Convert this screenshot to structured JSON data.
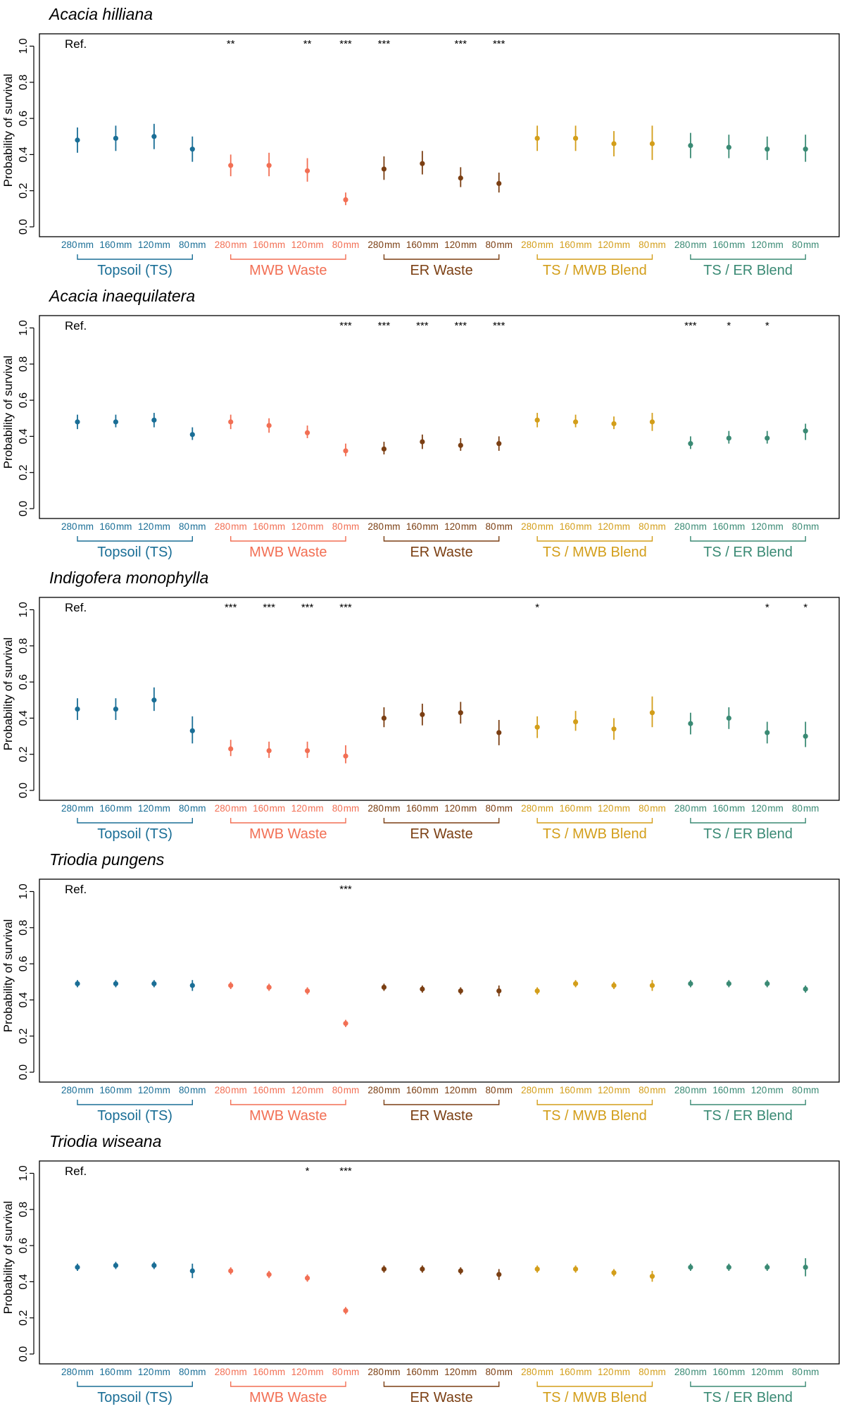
{
  "chart_data": {
    "type": "scatter",
    "ylabel": "Probability of survival",
    "ylim": [
      0,
      1.0
    ],
    "yticks": [
      "0.0",
      "0.2",
      "0.4",
      "0.6",
      "0.8",
      "1.0"
    ],
    "reference_label": "Ref.",
    "depth_labels": [
      "280",
      "160",
      "120",
      "80"
    ],
    "unit_label": "mm",
    "groups": [
      {
        "name": "Topsoil (TS)",
        "color": "#1a6e96"
      },
      {
        "name": "MWB Waste",
        "color": "#f26f54"
      },
      {
        "name": "ER Waste",
        "color": "#7b3f13"
      },
      {
        "name": "TS / MWB Blend",
        "color": "#d39e1a"
      },
      {
        "name": "TS / ER Blend",
        "color": "#3a8a74"
      }
    ],
    "panels": [
      {
        "title": "Acacia hilliana",
        "values": [
          0.48,
          0.49,
          0.5,
          0.43,
          0.34,
          0.34,
          0.31,
          0.15,
          0.32,
          0.35,
          0.27,
          0.24,
          0.49,
          0.49,
          0.46,
          0.46,
          0.45,
          0.44,
          0.43,
          0.43
        ],
        "lower": [
          0.41,
          0.42,
          0.43,
          0.36,
          0.28,
          0.28,
          0.25,
          0.12,
          0.26,
          0.29,
          0.22,
          0.19,
          0.42,
          0.42,
          0.39,
          0.37,
          0.38,
          0.38,
          0.37,
          0.36
        ],
        "upper": [
          0.55,
          0.56,
          0.57,
          0.5,
          0.4,
          0.41,
          0.38,
          0.19,
          0.39,
          0.42,
          0.33,
          0.3,
          0.56,
          0.56,
          0.53,
          0.56,
          0.52,
          0.51,
          0.5,
          0.51
        ],
        "significance": [
          "",
          "",
          "",
          "",
          "**",
          "",
          "**",
          "***",
          "***",
          "",
          "***",
          "***",
          "",
          "",
          "",
          "",
          "",
          "",
          "",
          ""
        ]
      },
      {
        "title": "Acacia inaequilatera",
        "values": [
          0.48,
          0.48,
          0.49,
          0.41,
          0.48,
          0.46,
          0.42,
          0.32,
          0.33,
          0.37,
          0.35,
          0.36,
          0.49,
          0.48,
          0.47,
          0.48,
          0.36,
          0.39,
          0.39,
          0.43
        ],
        "lower": [
          0.44,
          0.45,
          0.45,
          0.38,
          0.44,
          0.42,
          0.39,
          0.29,
          0.3,
          0.33,
          0.32,
          0.32,
          0.45,
          0.45,
          0.44,
          0.43,
          0.33,
          0.36,
          0.36,
          0.38
        ],
        "upper": [
          0.52,
          0.52,
          0.53,
          0.45,
          0.52,
          0.5,
          0.46,
          0.36,
          0.37,
          0.41,
          0.39,
          0.4,
          0.53,
          0.52,
          0.51,
          0.53,
          0.4,
          0.43,
          0.43,
          0.47
        ],
        "significance": [
          "",
          "",
          "",
          "",
          "",
          "",
          "",
          "***",
          "***",
          "***",
          "***",
          "***",
          "",
          "",
          "",
          "",
          "***",
          "*",
          "*",
          ""
        ]
      },
      {
        "title": "Indigofera monophylla",
        "values": [
          0.45,
          0.45,
          0.5,
          0.33,
          0.23,
          0.22,
          0.22,
          0.19,
          0.4,
          0.42,
          0.43,
          0.32,
          0.35,
          0.38,
          0.34,
          0.43,
          0.37,
          0.4,
          0.32,
          0.3
        ],
        "lower": [
          0.39,
          0.39,
          0.44,
          0.26,
          0.19,
          0.18,
          0.18,
          0.15,
          0.35,
          0.36,
          0.37,
          0.25,
          0.29,
          0.33,
          0.28,
          0.35,
          0.31,
          0.34,
          0.26,
          0.24
        ],
        "upper": [
          0.51,
          0.51,
          0.57,
          0.41,
          0.28,
          0.27,
          0.27,
          0.25,
          0.46,
          0.48,
          0.49,
          0.39,
          0.41,
          0.44,
          0.4,
          0.52,
          0.43,
          0.46,
          0.38,
          0.38
        ],
        "significance": [
          "",
          "",
          "",
          "",
          "***",
          "***",
          "***",
          "***",
          "",
          "",
          "",
          "",
          "*",
          "",
          "",
          "",
          "",
          "",
          "*",
          "*"
        ]
      },
      {
        "title": "Triodia pungens",
        "values": [
          0.49,
          0.49,
          0.49,
          0.48,
          0.48,
          0.47,
          0.45,
          0.27,
          0.47,
          0.46,
          0.45,
          0.45,
          0.45,
          0.49,
          0.48,
          0.48,
          0.49,
          0.49,
          0.49,
          0.46
        ],
        "lower": [
          0.47,
          0.47,
          0.47,
          0.45,
          0.46,
          0.45,
          0.43,
          0.25,
          0.45,
          0.44,
          0.43,
          0.42,
          0.43,
          0.47,
          0.46,
          0.45,
          0.47,
          0.47,
          0.47,
          0.44
        ],
        "upper": [
          0.51,
          0.51,
          0.51,
          0.51,
          0.5,
          0.49,
          0.47,
          0.29,
          0.49,
          0.48,
          0.47,
          0.48,
          0.47,
          0.51,
          0.5,
          0.51,
          0.51,
          0.51,
          0.51,
          0.48
        ],
        "significance": [
          "",
          "",
          "",
          "",
          "",
          "",
          "",
          "***",
          "",
          "",
          "",
          "",
          "",
          "",
          "",
          "",
          "",
          "",
          "",
          ""
        ]
      },
      {
        "title": "Triodia wiseana",
        "values": [
          0.48,
          0.49,
          0.49,
          0.46,
          0.46,
          0.44,
          0.42,
          0.24,
          0.47,
          0.47,
          0.46,
          0.44,
          0.47,
          0.47,
          0.45,
          0.43,
          0.48,
          0.48,
          0.48,
          0.48
        ],
        "lower": [
          0.46,
          0.47,
          0.47,
          0.42,
          0.44,
          0.42,
          0.4,
          0.22,
          0.45,
          0.45,
          0.44,
          0.41,
          0.45,
          0.45,
          0.43,
          0.4,
          0.46,
          0.46,
          0.46,
          0.43
        ],
        "upper": [
          0.5,
          0.51,
          0.51,
          0.5,
          0.48,
          0.46,
          0.44,
          0.26,
          0.49,
          0.49,
          0.48,
          0.47,
          0.49,
          0.49,
          0.47,
          0.46,
          0.5,
          0.5,
          0.5,
          0.53
        ],
        "significance": [
          "",
          "",
          "",
          "",
          "",
          "",
          "*",
          "***",
          "",
          "",
          "",
          "",
          "",
          "",
          "",
          "",
          "",
          "",
          "",
          ""
        ]
      }
    ]
  }
}
